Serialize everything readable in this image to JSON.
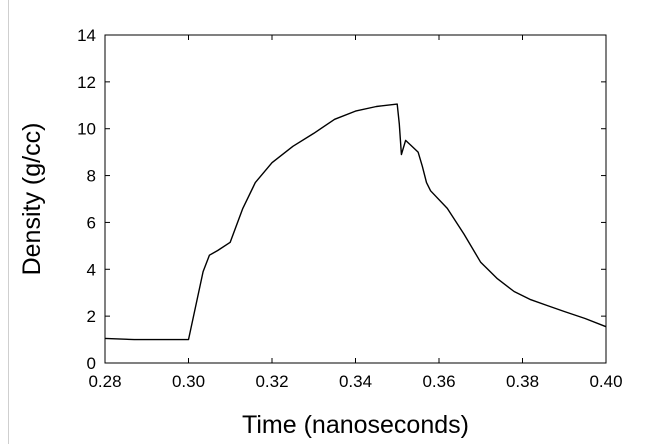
{
  "chart_data": {
    "type": "line",
    "title": "",
    "xlabel": "Time (nanoseconds)",
    "ylabel": "Density (g/cc)",
    "xlim": [
      0.28,
      0.4
    ],
    "ylim": [
      0,
      14
    ],
    "x_ticks": [
      "0.28",
      "0.30",
      "0.32",
      "0.34",
      "0.36",
      "0.38",
      "0.40"
    ],
    "y_ticks": [
      "0",
      "2",
      "4",
      "6",
      "8",
      "10",
      "12",
      "14"
    ],
    "grid": false,
    "legend": "none",
    "line_color": "#000000",
    "series": [
      {
        "x": [
          0.28,
          0.287,
          0.3,
          0.3035,
          0.305,
          0.307,
          0.31,
          0.313,
          0.316,
          0.32,
          0.325,
          0.33,
          0.335,
          0.34,
          0.345,
          0.35,
          0.3505,
          0.351,
          0.352,
          0.3535,
          0.355,
          0.356,
          0.357,
          0.358,
          0.362,
          0.366,
          0.37,
          0.374,
          0.378,
          0.382,
          0.386,
          0.39,
          0.395,
          0.4
        ],
        "y": [
          1.05,
          1.0,
          1.0,
          3.9,
          4.6,
          4.8,
          5.15,
          6.6,
          7.7,
          8.55,
          9.25,
          9.8,
          10.4,
          10.75,
          10.95,
          11.05,
          10.2,
          8.9,
          9.5,
          9.25,
          9.0,
          8.4,
          7.7,
          7.35,
          6.6,
          5.5,
          4.3,
          3.6,
          3.05,
          2.7,
          2.45,
          2.2,
          1.9,
          1.55
        ]
      }
    ]
  }
}
